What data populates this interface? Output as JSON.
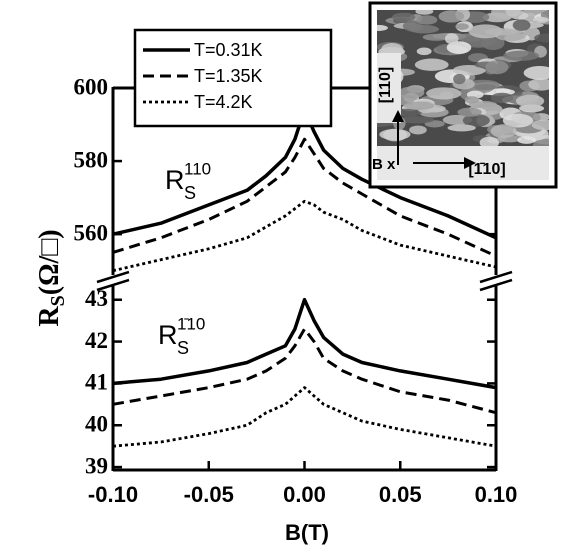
{
  "chart_data": [
    {
      "type": "line",
      "x": [
        -0.1,
        -0.075,
        -0.05,
        -0.03,
        -0.02,
        -0.01,
        -0.005,
        0,
        0.005,
        0.01,
        0.02,
        0.03,
        0.05,
        0.075,
        0.1
      ],
      "xlim": [
        -0.1,
        0.1
      ],
      "ylim": [
        548,
        600
      ],
      "yticks": [
        560,
        580,
        600
      ],
      "annotation": {
        "main": "R",
        "sub": "S",
        "sup": "110"
      },
      "legend": "upper left",
      "series": [
        {
          "name": "T=0.31K",
          "color": "#000000",
          "dash": "solid",
          "values": [
            560,
            563,
            568,
            572,
            576,
            581,
            586,
            594,
            588,
            583,
            578,
            575,
            570,
            565,
            559
          ]
        },
        {
          "name": "T=1.35K",
          "color": "#000000",
          "dash": "dashed",
          "values": [
            555,
            559,
            564,
            569,
            573,
            577,
            581,
            586,
            582,
            578,
            574,
            571,
            565,
            560,
            554
          ]
        },
        {
          "name": "T=4.2K",
          "color": "#000000",
          "dash": "dotted",
          "values": [
            550,
            553,
            556,
            559,
            562,
            565,
            567,
            569,
            568,
            566,
            564,
            561,
            557,
            554,
            551
          ]
        }
      ],
      "inset": {
        "vertical_label": "[110]",
        "field_label": "B x",
        "horizontal_label": "[1̄10]"
      }
    },
    {
      "type": "line",
      "x": [
        -0.1,
        -0.075,
        -0.05,
        -0.03,
        -0.02,
        -0.01,
        -0.005,
        0,
        0.005,
        0.01,
        0.02,
        0.03,
        0.05,
        0.075,
        0.1
      ],
      "xlim": [
        -0.1,
        0.1
      ],
      "xticks": [
        {
          "value": -0.1,
          "label": "-0.10"
        },
        {
          "value": -0.05,
          "label": "-0.05"
        },
        {
          "value": 0,
          "label": "0.00"
        },
        {
          "value": 0.05,
          "label": "0.05"
        },
        {
          "value": 0.1,
          "label": "0.10"
        }
      ],
      "ylim": [
        38.93,
        43.4
      ],
      "yticks": [
        39,
        40,
        41,
        42,
        43
      ],
      "xlabel": "B(T)",
      "ylabel": {
        "main": "R",
        "sub": "S",
        "unit": "(Ω/□)"
      },
      "annotation": {
        "main": "R",
        "sub": "S",
        "sup": "1̄10"
      },
      "series": [
        {
          "color": "#000000",
          "dash": "solid",
          "values": [
            41.0,
            41.1,
            41.3,
            41.5,
            41.7,
            41.9,
            42.3,
            43.0,
            42.5,
            42.1,
            41.7,
            41.5,
            41.3,
            41.1,
            40.9
          ]
        },
        {
          "color": "#000000",
          "dash": "dashed",
          "values": [
            40.5,
            40.7,
            40.9,
            41.1,
            41.3,
            41.6,
            41.9,
            42.3,
            42.0,
            41.6,
            41.3,
            41.1,
            40.8,
            40.6,
            40.3
          ]
        },
        {
          "color": "#000000",
          "dash": "dotted",
          "values": [
            39.5,
            39.6,
            39.8,
            40.0,
            40.3,
            40.5,
            40.7,
            40.9,
            40.7,
            40.5,
            40.3,
            40.1,
            39.9,
            39.7,
            39.5
          ]
        }
      ]
    }
  ]
}
